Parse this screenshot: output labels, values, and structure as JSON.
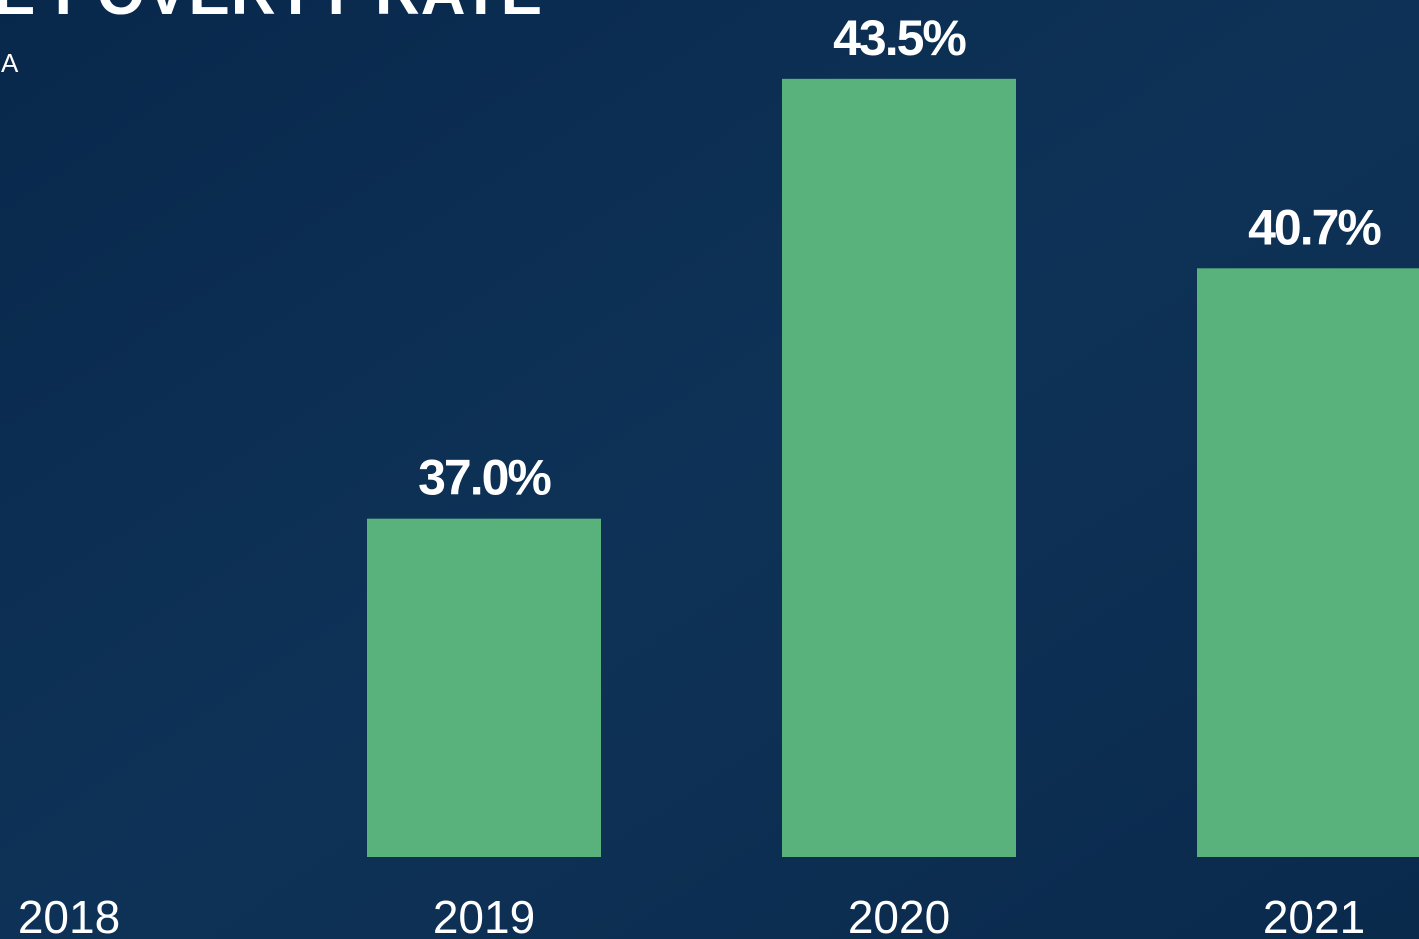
{
  "chart_data": {
    "type": "bar",
    "title": "E POVERTY RATE",
    "subtitle": "A",
    "categories": [
      "2018",
      "2019",
      "2020",
      "2021"
    ],
    "values": [
      null,
      37.0,
      43.5,
      40.7
    ],
    "value_labels": [
      null,
      "37.0%",
      "43.5%",
      "40.7%"
    ],
    "color": "#59b27b",
    "ylim": [
      32,
      44
    ]
  }
}
